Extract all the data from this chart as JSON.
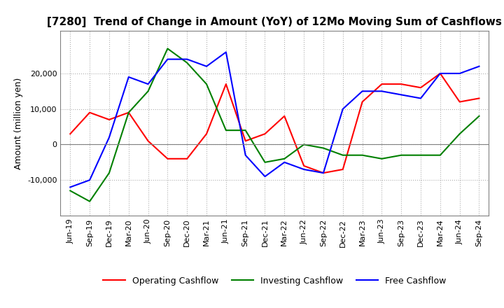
{
  "title": "[7280]  Trend of Change in Amount (YoY) of 12Mo Moving Sum of Cashflows",
  "ylabel": "Amount (million yen)",
  "title_fontsize": 11,
  "label_fontsize": 9,
  "tick_fontsize": 8,
  "x_labels": [
    "Jun-19",
    "Sep-19",
    "Dec-19",
    "Mar-20",
    "Jun-20",
    "Sep-20",
    "Dec-20",
    "Mar-21",
    "Jun-21",
    "Sep-21",
    "Dec-21",
    "Mar-22",
    "Jun-22",
    "Sep-22",
    "Dec-22",
    "Mar-23",
    "Jun-23",
    "Sep-23",
    "Dec-23",
    "Mar-24",
    "Jun-24",
    "Sep-24"
  ],
  "operating": [
    3000,
    9000,
    7000,
    9000,
    1000,
    -4000,
    -4000,
    3000,
    17000,
    1000,
    3000,
    8000,
    -6000,
    -8000,
    -7000,
    12000,
    17000,
    17000,
    16000,
    20000,
    12000,
    13000
  ],
  "investing": [
    -13000,
    -16000,
    -8000,
    9000,
    15000,
    27000,
    23000,
    17000,
    4000,
    4000,
    -5000,
    -4000,
    0,
    -1000,
    -3000,
    -3000,
    -4000,
    -3000,
    -3000,
    -3000,
    3000,
    8000
  ],
  "free": [
    -12000,
    -10000,
    2000,
    19000,
    17000,
    24000,
    24000,
    22000,
    26000,
    -3000,
    -9000,
    -5000,
    -7000,
    -8000,
    10000,
    15000,
    15000,
    14000,
    13000,
    20000,
    20000,
    22000
  ],
  "operating_color": "#ff0000",
  "investing_color": "#008000",
  "free_color": "#0000ff",
  "background_color": "#ffffff",
  "grid_color": "#b0b0b0",
  "ylim": [
    -20000,
    32000
  ],
  "yticks": [
    -10000,
    0,
    10000,
    20000
  ]
}
